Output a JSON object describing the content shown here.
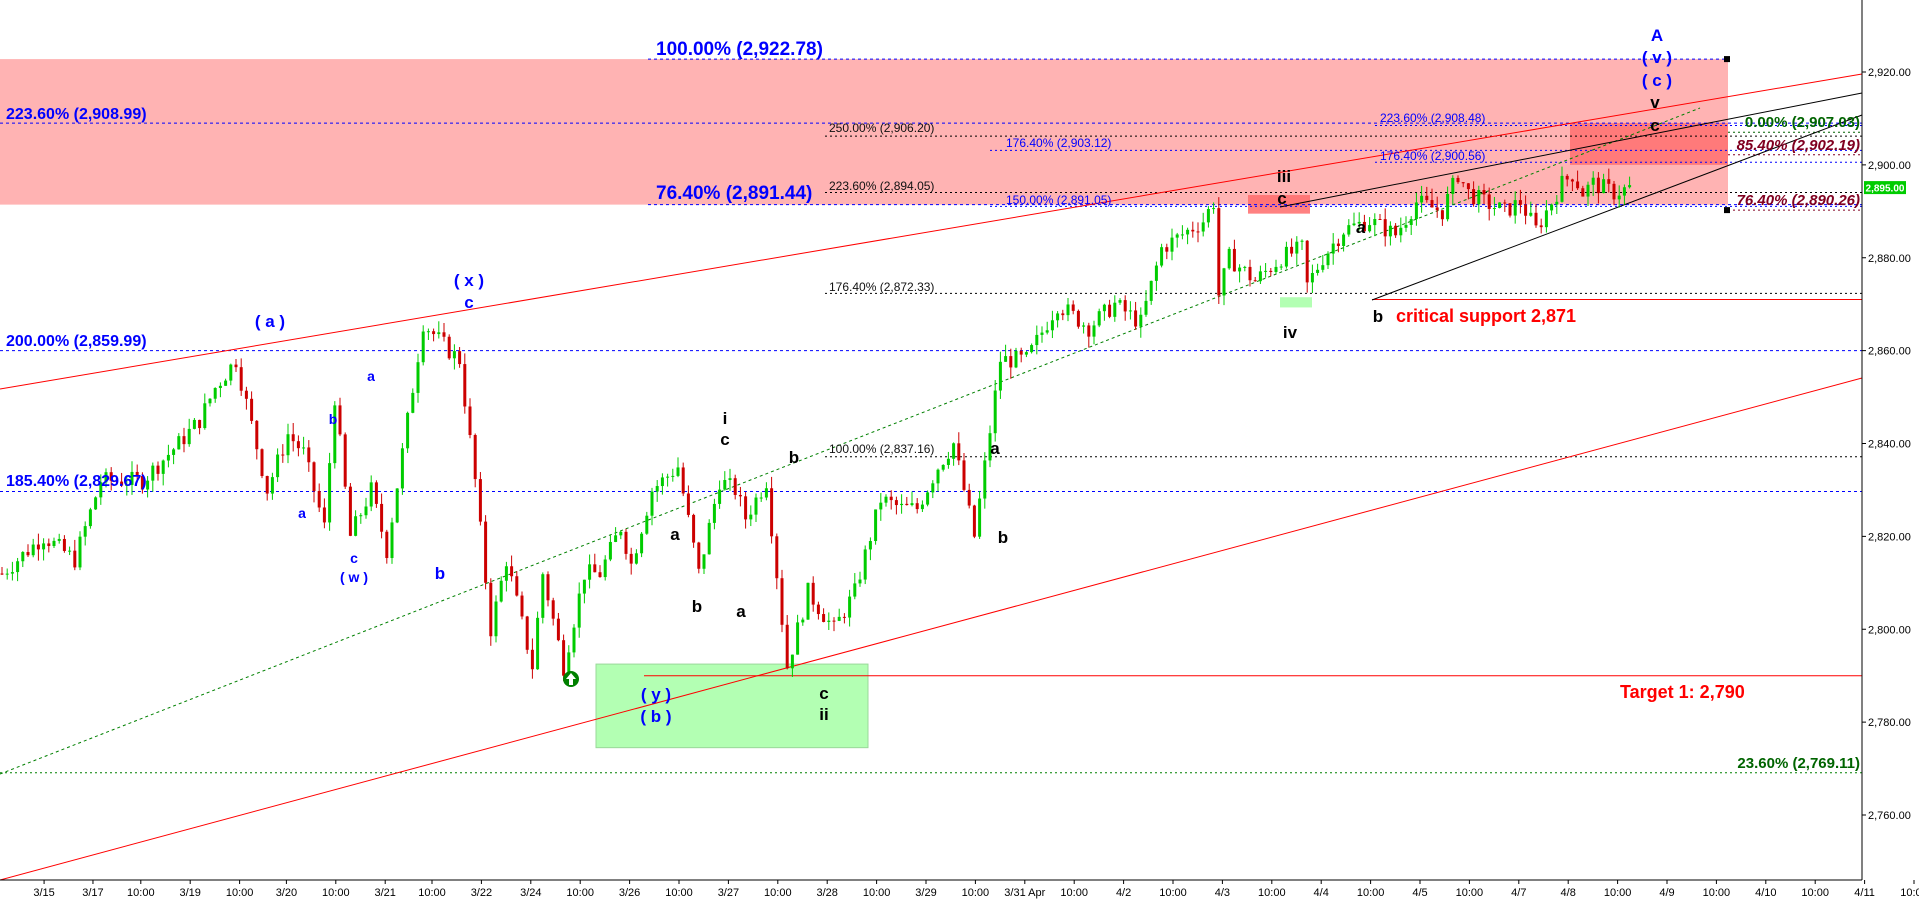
{
  "colors": {
    "up": "#00cc00",
    "down": "#cc0000",
    "fib_blue": "#0000ff",
    "red_line": "#ff0000",
    "green_dotted": "#008000",
    "zone_pink": "#ffb3b3",
    "zone_red": "#ff6b6b",
    "zone_green": "#b3ffb3",
    "price_badge": "#00cc00"
  },
  "chart_data": {
    "type": "candlestick",
    "ylim": [
      2750,
      2930
    ],
    "y_ticks": [
      "2,760.00",
      "2,780.00",
      "2,800.00",
      "2,820.00",
      "2,840.00",
      "2,860.00",
      "2,880.00",
      "2,900.00",
      "2,920.00"
    ],
    "y_tick_values": [
      2760,
      2780,
      2800,
      2820,
      2840,
      2860,
      2880,
      2900,
      2920
    ],
    "x_ticks": [
      "3/15",
      "3/17",
      "10:00",
      "3/19",
      "10:00",
      "3/20",
      "10:00",
      "3/21",
      "10:00",
      "3/22",
      "3/24",
      "10:00",
      "3/26",
      "10:00",
      "3/27",
      "10:00",
      "3/28",
      "10:00",
      "3/29",
      "10:00",
      "3/31 Apr",
      "10:00",
      "4/2",
      "10:00",
      "4/3",
      "10:00",
      "4/4",
      "10:00",
      "4/5",
      "10:00",
      "4/7",
      "4/8",
      "10:00",
      "4/9",
      "10:00",
      "4/10",
      "10:00",
      "4/11",
      "10:00"
    ],
    "x_tick_slots": [
      0.4,
      9.8,
      19,
      28.5,
      38,
      47,
      56.5,
      66,
      75,
      84.5,
      94,
      103.5,
      113,
      122.5,
      132,
      141.5,
      151,
      160.5,
      170,
      179.5,
      189,
      198.5,
      208,
      217.5,
      227,
      236.5,
      246,
      255.5,
      265,
      274.5,
      284,
      293.5,
      303,
      312.5,
      322,
      331.5,
      341,
      350.5,
      360
    ],
    "current_price": "2,895.00",
    "current_price_value": 2895,
    "price_path": {
      "slots": [
        0,
        8,
        14,
        19,
        27,
        34,
        38,
        41,
        45,
        51,
        55,
        58,
        62,
        64,
        67,
        71,
        74,
        81,
        86,
        88,
        91,
        94,
        97,
        102,
        104,
        108,
        112,
        115,
        119,
        121,
        125,
        130,
        134,
        138,
        141,
        143,
        147,
        151,
        155,
        160,
        164,
        169,
        173,
        176,
        180,
        183,
        187,
        192,
        197,
        203,
        209,
        214,
        219,
        223,
        227,
        231,
        233,
        234,
        236,
        241,
        246,
        250,
        251,
        254,
        258,
        263,
        268,
        272,
        277,
        280,
        282,
        285,
        289,
        292,
        295,
        298,
        300,
        302,
        304,
        306,
        310,
        313
      ],
      "values": [
        2812,
        2820,
        2815,
        2832,
        2832,
        2840,
        2845,
        2852,
        2858,
        2830,
        2842,
        2838,
        2822,
        2850,
        2820,
        2830,
        2817,
        2866,
        2860,
        2858,
        2832,
        2800,
        2815,
        2792,
        2812,
        2792,
        2812,
        2812,
        2822,
        2814,
        2830,
        2835,
        2812,
        2832,
        2830,
        2824,
        2832,
        2792,
        2808,
        2800,
        2808,
        2828,
        2826,
        2826,
        2835,
        2840,
        2820,
        2858,
        2858,
        2870,
        2865,
        2870,
        2866,
        2882,
        2885,
        2888,
        2892,
        2872,
        2880,
        2875,
        2880,
        2882,
        2874,
        2880,
        2886,
        2888,
        2885,
        2892,
        2890,
        2898,
        2894,
        2892,
        2890,
        2892,
        2886,
        2892,
        2896,
        2898,
        2894,
        2896,
        2894,
        2895
      ]
    },
    "fib_levels": [
      {
        "value": 2922.78,
        "label": "100.00% (2,922.78)"
      },
      {
        "value": 2908.99,
        "label": "223.60% (2,908.99)"
      },
      {
        "value": 2891.44,
        "label": "76.40% (2,891.44)"
      },
      {
        "value": 2859.99,
        "label": "200.00% (2,859.99)"
      },
      {
        "value": 2829.67,
        "label": "185.40% (2,829.67)"
      }
    ],
    "small_fibs": [
      {
        "value": 2906.2,
        "label": "250.00% (2,906.20)"
      },
      {
        "value": 2903.12,
        "label": "176.40% (2,903.12)"
      },
      {
        "value": 2894.05,
        "label": "223.60% (2,894.05)"
      },
      {
        "value": 2891.05,
        "label": "150.00% (2,891.05)"
      },
      {
        "value": 2908.48,
        "label": "223.60% (2,908.48)"
      },
      {
        "value": 2900.56,
        "label": "176.40% (2,900.56)"
      },
      {
        "value": 2872.33,
        "label": "176.40% (2,872.33)"
      },
      {
        "value": 2837.16,
        "label": "100.00% (2,837.16)"
      }
    ],
    "right_fibs": [
      {
        "value": 2907.03,
        "label": "0.00% (2,907.03)"
      },
      {
        "value": 2902.19,
        "label": "85.40% (2,902.19)"
      },
      {
        "value": 2890.26,
        "label": "76.40% (2,890.26)"
      },
      {
        "value": 2769.11,
        "label": "23.60% (2,769.11)"
      }
    ],
    "annotations": {
      "critical_support": "critical  support 2,871",
      "critical_support_value": 2871,
      "target": "Target 1: 2,790",
      "target_value": 2790
    },
    "wave_labels": {
      "a_paren": "( a )",
      "x_paren": "( x )",
      "c": "c",
      "a": "a",
      "b": "b",
      "w_paren": "( w )",
      "y_paren": "( y )",
      "b_paren": "( b )",
      "i": "i",
      "ii": "ii",
      "iii": "iii",
      "iv": "iv",
      "v": "v",
      "A": "A",
      "v_paren": "( v )",
      "c_paren": "( c )"
    }
  }
}
